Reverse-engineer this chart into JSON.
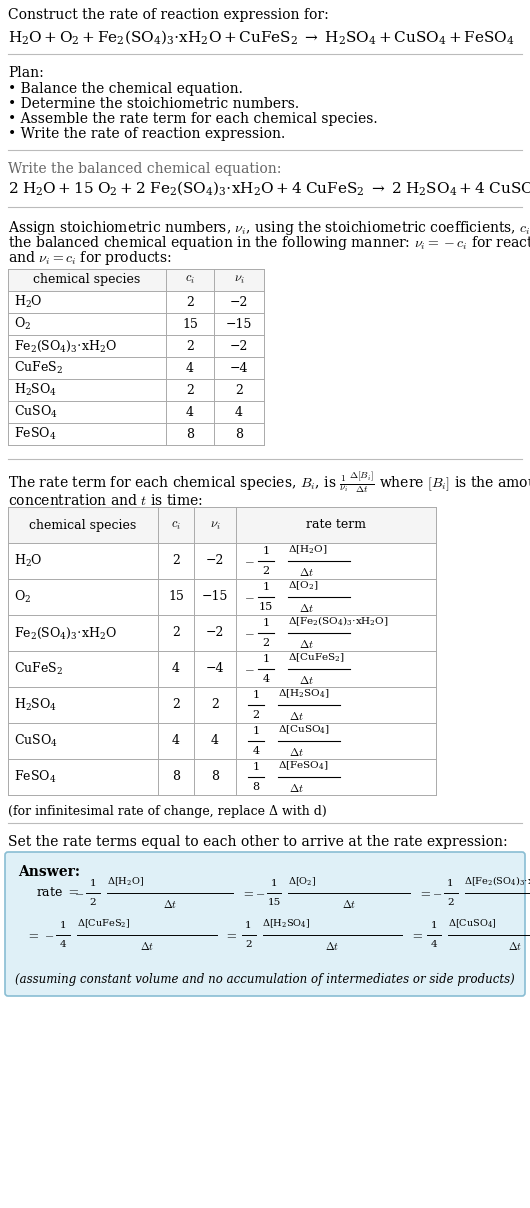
{
  "bg_color": "#ffffff",
  "title_line1": "Construct the rate of reaction expression for:",
  "plan_header": "Plan:",
  "plan_items": [
    "• Balance the chemical equation.",
    "• Determine the stoichiometric numbers.",
    "• Assemble the rate term for each chemical species.",
    "• Write the rate of reaction expression."
  ],
  "balanced_header": "Write the balanced chemical equation:",
  "stoich_intro_lines": [
    "Assign stoichiometric numbers, $\\nu_i$, using the stoichiometric coefficients, $c_i$, from",
    "the balanced chemical equation in the following manner: $\\nu_i = -c_i$ for reactants",
    "and $\\nu_i = c_i$ for products:"
  ],
  "table1_headers": [
    "chemical species",
    "$c_i$",
    "$\\nu_i$"
  ],
  "table1_rows": [
    [
      "H_2O",
      "2",
      "−2"
    ],
    [
      "O_2",
      "15",
      "−15"
    ],
    [
      "Fe_2(SO_4)_3xH_2O",
      "2",
      "−2"
    ],
    [
      "CuFeS_2",
      "4",
      "−4"
    ],
    [
      "H_2SO_4",
      "2",
      "2"
    ],
    [
      "CuSO_4",
      "4",
      "4"
    ],
    [
      "FeSO_4",
      "8",
      "8"
    ]
  ],
  "rate_intro_line1": "The rate term for each chemical species, $B_i$, is $\\frac{1}{\\nu_i}\\frac{\\Delta[B_i]}{\\Delta t}$ where $[B_i]$ is the amount",
  "rate_intro_line2": "concentration and $t$ is time:",
  "table2_headers": [
    "chemical species",
    "$c_i$",
    "$\\nu_i$",
    "rate term"
  ],
  "table2_rows_species": [
    "H_2O",
    "O_2",
    "Fe_2(SO_4)_3xH_2O",
    "CuFeS_2",
    "H_2SO_4",
    "CuSO_4",
    "FeSO_4"
  ],
  "table2_rows_ci": [
    "2",
    "15",
    "2",
    "4",
    "2",
    "4",
    "8"
  ],
  "table2_rows_vi": [
    "−2",
    "−15",
    "−2",
    "−4",
    "2",
    "4",
    "8"
  ],
  "table2_rows_sign": [
    "-",
    "-",
    "-",
    "-",
    "",
    "",
    ""
  ],
  "table2_rows_frac": [
    "1/2",
    "1/15",
    "1/2",
    "1/4",
    "1/2",
    "1/4",
    "1/8"
  ],
  "infinitesimal_note": "(for infinitesimal rate of change, replace Δ with d)",
  "set_equal_text": "Set the rate terms equal to each other to arrive at the rate expression:",
  "answer_box_color": "#dff0f7",
  "answer_box_border": "#89bdd3",
  "answer_label": "Answer:",
  "footer_note": "(assuming constant volume and no accumulation of intermediates or side products)"
}
